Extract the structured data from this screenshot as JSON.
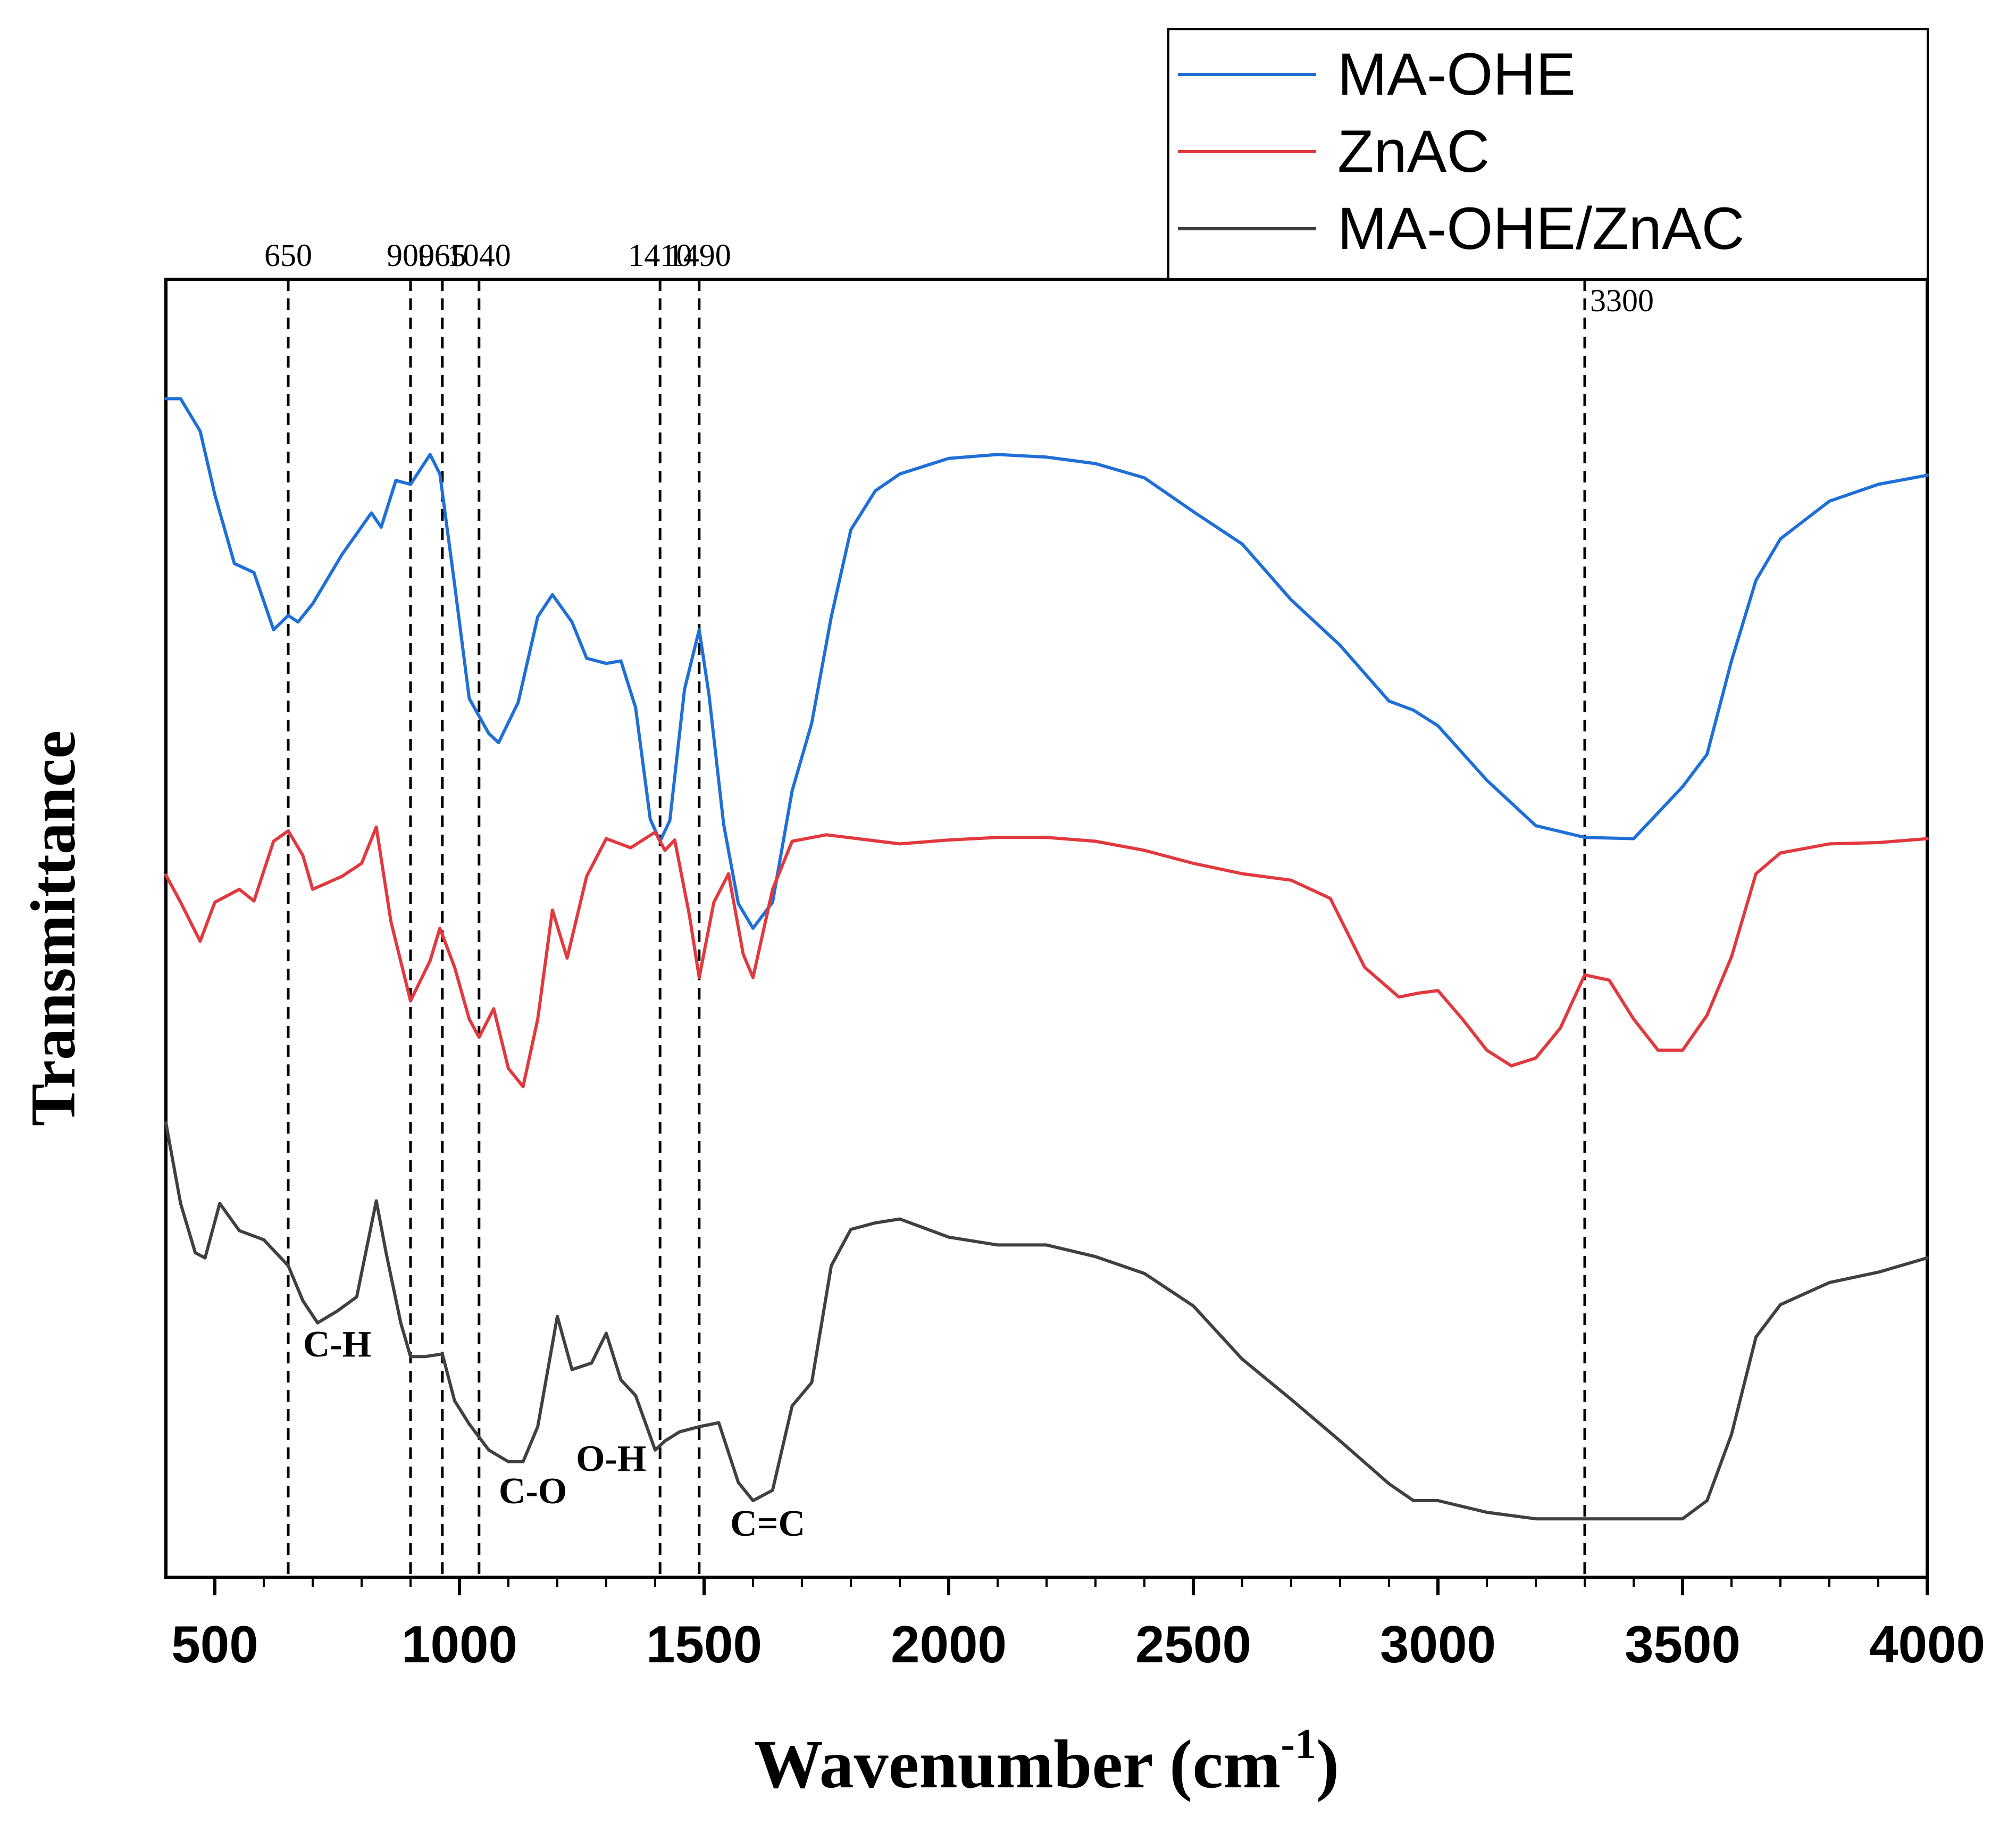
{
  "chart_data": {
    "type": "line",
    "title": "",
    "xlabel": "Wavenumber (cm",
    "xlabel_superscript": "-1",
    "xlabel_close": ")",
    "ylabel": "Transmittance",
    "xlim": [
      400,
      4000
    ],
    "ylim": [
      0,
      100
    ],
    "x_ticks": [
      500,
      1000,
      1500,
      2000,
      2500,
      3000,
      3500,
      4000
    ],
    "x_tick_labels": [
      "500",
      "1000",
      "1500",
      "2000",
      "2500",
      "3000",
      "3500",
      "4000"
    ],
    "legend_position": "top-right",
    "series": [
      {
        "name": "MA-OHE",
        "color": "#1f6fd6",
        "points": [
          [
            400,
            90.8
          ],
          [
            430,
            90.8
          ],
          [
            470,
            88.3
          ],
          [
            500,
            83.4
          ],
          [
            540,
            78.1
          ],
          [
            580,
            77.4
          ],
          [
            620,
            73.0
          ],
          [
            650,
            74.1
          ],
          [
            670,
            73.6
          ],
          [
            700,
            75.0
          ],
          [
            760,
            78.8
          ],
          [
            820,
            82.0
          ],
          [
            840,
            80.9
          ],
          [
            870,
            84.5
          ],
          [
            900,
            84.2
          ],
          [
            940,
            86.5
          ],
          [
            960,
            85.0
          ],
          [
            990,
            76.5
          ],
          [
            1020,
            67.7
          ],
          [
            1060,
            65.0
          ],
          [
            1080,
            64.3
          ],
          [
            1120,
            67.4
          ],
          [
            1160,
            74.0
          ],
          [
            1190,
            75.7
          ],
          [
            1230,
            73.6
          ],
          [
            1260,
            70.8
          ],
          [
            1300,
            70.4
          ],
          [
            1330,
            70.6
          ],
          [
            1360,
            67.0
          ],
          [
            1390,
            58.4
          ],
          [
            1410,
            56.7
          ],
          [
            1430,
            58.3
          ],
          [
            1460,
            68.4
          ],
          [
            1490,
            73.0
          ],
          [
            1510,
            68.0
          ],
          [
            1540,
            58.0
          ],
          [
            1570,
            51.9
          ],
          [
            1600,
            50.0
          ],
          [
            1640,
            52.0
          ],
          [
            1680,
            60.6
          ],
          [
            1720,
            65.8
          ],
          [
            1760,
            74.0
          ],
          [
            1800,
            80.7
          ],
          [
            1850,
            83.7
          ],
          [
            1900,
            85.0
          ],
          [
            2000,
            86.2
          ],
          [
            2100,
            86.5
          ],
          [
            2200,
            86.3
          ],
          [
            2300,
            85.8
          ],
          [
            2400,
            84.7
          ],
          [
            2500,
            82.1
          ],
          [
            2600,
            79.6
          ],
          [
            2700,
            75.3
          ],
          [
            2800,
            71.8
          ],
          [
            2900,
            67.5
          ],
          [
            2950,
            66.8
          ],
          [
            3000,
            65.6
          ],
          [
            3100,
            61.4
          ],
          [
            3200,
            57.9
          ],
          [
            3300,
            57.0
          ],
          [
            3400,
            56.9
          ],
          [
            3500,
            60.9
          ],
          [
            3550,
            63.4
          ],
          [
            3600,
            70.6
          ],
          [
            3650,
            76.8
          ],
          [
            3700,
            80.0
          ],
          [
            3800,
            82.9
          ],
          [
            3900,
            84.2
          ],
          [
            4000,
            84.9
          ]
        ]
      },
      {
        "name": "ZnAC",
        "color": "#e0393e",
        "points": [
          [
            400,
            54.1
          ],
          [
            430,
            52.0
          ],
          [
            470,
            49.0
          ],
          [
            500,
            52.0
          ],
          [
            550,
            53.0
          ],
          [
            580,
            52.1
          ],
          [
            620,
            56.7
          ],
          [
            650,
            57.5
          ],
          [
            680,
            55.6
          ],
          [
            700,
            53.0
          ],
          [
            760,
            54.0
          ],
          [
            800,
            55.0
          ],
          [
            830,
            57.8
          ],
          [
            860,
            50.5
          ],
          [
            900,
            44.4
          ],
          [
            940,
            47.5
          ],
          [
            960,
            50.0
          ],
          [
            990,
            47.0
          ],
          [
            1020,
            43.0
          ],
          [
            1040,
            41.6
          ],
          [
            1070,
            43.8
          ],
          [
            1100,
            39.2
          ],
          [
            1130,
            37.8
          ],
          [
            1160,
            43.0
          ],
          [
            1190,
            51.4
          ],
          [
            1220,
            47.7
          ],
          [
            1260,
            54.0
          ],
          [
            1300,
            56.9
          ],
          [
            1350,
            56.2
          ],
          [
            1400,
            57.4
          ],
          [
            1420,
            56.0
          ],
          [
            1440,
            56.8
          ],
          [
            1470,
            51.0
          ],
          [
            1490,
            46.2
          ],
          [
            1520,
            52.0
          ],
          [
            1550,
            54.2
          ],
          [
            1580,
            48.0
          ],
          [
            1600,
            46.2
          ],
          [
            1640,
            53.0
          ],
          [
            1680,
            56.7
          ],
          [
            1750,
            57.2
          ],
          [
            1900,
            56.5
          ],
          [
            2000,
            56.8
          ],
          [
            2100,
            57.0
          ],
          [
            2200,
            57.0
          ],
          [
            2300,
            56.7
          ],
          [
            2400,
            56.0
          ],
          [
            2500,
            55.0
          ],
          [
            2600,
            54.2
          ],
          [
            2700,
            53.7
          ],
          [
            2780,
            52.3
          ],
          [
            2850,
            47.0
          ],
          [
            2920,
            44.7
          ],
          [
            2960,
            45.0
          ],
          [
            3000,
            45.2
          ],
          [
            3050,
            43.0
          ],
          [
            3100,
            40.6
          ],
          [
            3150,
            39.4
          ],
          [
            3200,
            40.0
          ],
          [
            3250,
            42.3
          ],
          [
            3300,
            46.4
          ],
          [
            3350,
            46.0
          ],
          [
            3400,
            43.0
          ],
          [
            3450,
            40.6
          ],
          [
            3500,
            40.6
          ],
          [
            3550,
            43.3
          ],
          [
            3600,
            47.8
          ],
          [
            3650,
            54.2
          ],
          [
            3700,
            55.8
          ],
          [
            3800,
            56.5
          ],
          [
            3900,
            56.6
          ],
          [
            4000,
            56.9
          ]
        ]
      },
      {
        "name": "MA-OHE/ZnAC",
        "color": "#404040",
        "points": [
          [
            400,
            35.0
          ],
          [
            430,
            28.8
          ],
          [
            460,
            25.0
          ],
          [
            480,
            24.6
          ],
          [
            510,
            28.8
          ],
          [
            550,
            26.7
          ],
          [
            600,
            26.0
          ],
          [
            650,
            24.0
          ],
          [
            680,
            21.3
          ],
          [
            710,
            19.6
          ],
          [
            750,
            20.5
          ],
          [
            790,
            21.6
          ],
          [
            830,
            29.0
          ],
          [
            850,
            25.0
          ],
          [
            880,
            19.6
          ],
          [
            900,
            17.0
          ],
          [
            930,
            17.0
          ],
          [
            965,
            17.2
          ],
          [
            990,
            13.6
          ],
          [
            1020,
            11.8
          ],
          [
            1060,
            9.8
          ],
          [
            1100,
            8.9
          ],
          [
            1130,
            8.9
          ],
          [
            1160,
            11.6
          ],
          [
            1200,
            20.1
          ],
          [
            1230,
            16.0
          ],
          [
            1270,
            16.5
          ],
          [
            1300,
            18.8
          ],
          [
            1330,
            15.2
          ],
          [
            1360,
            14.0
          ],
          [
            1400,
            9.8
          ],
          [
            1420,
            10.5
          ],
          [
            1450,
            11.2
          ],
          [
            1490,
            11.6
          ],
          [
            1530,
            11.9
          ],
          [
            1570,
            7.3
          ],
          [
            1600,
            5.9
          ],
          [
            1640,
            6.7
          ],
          [
            1680,
            13.2
          ],
          [
            1720,
            15.0
          ],
          [
            1760,
            24.0
          ],
          [
            1800,
            26.8
          ],
          [
            1850,
            27.3
          ],
          [
            1900,
            27.6
          ],
          [
            2000,
            26.2
          ],
          [
            2100,
            25.6
          ],
          [
            2200,
            25.6
          ],
          [
            2300,
            24.7
          ],
          [
            2400,
            23.4
          ],
          [
            2500,
            20.9
          ],
          [
            2600,
            16.8
          ],
          [
            2700,
            13.7
          ],
          [
            2800,
            10.5
          ],
          [
            2900,
            7.2
          ],
          [
            2950,
            5.9
          ],
          [
            3000,
            5.9
          ],
          [
            3100,
            5.0
          ],
          [
            3200,
            4.5
          ],
          [
            3300,
            4.5
          ],
          [
            3400,
            4.5
          ],
          [
            3500,
            4.5
          ],
          [
            3550,
            5.9
          ],
          [
            3600,
            11.0
          ],
          [
            3650,
            18.5
          ],
          [
            3700,
            21.0
          ],
          [
            3800,
            22.7
          ],
          [
            3900,
            23.5
          ],
          [
            4000,
            24.6
          ]
        ]
      }
    ],
    "reference_lines": [
      {
        "x": 650,
        "label": "650"
      },
      {
        "x": 900,
        "label": "900"
      },
      {
        "x": 965,
        "label": "965"
      },
      {
        "x": 1040,
        "label": "1040"
      },
      {
        "x": 1410,
        "label": "1410"
      },
      {
        "x": 1490,
        "label": "1490"
      },
      {
        "x": 3300,
        "label": "3300"
      }
    ],
    "annotations": [
      {
        "text": "C-H",
        "x": 750,
        "y": 17.0
      },
      {
        "text": "C-O",
        "x": 1150,
        "y": 5.7
      },
      {
        "text": "O-H",
        "x": 1310,
        "y": 8.2
      },
      {
        "text": "C=C",
        "x": 1630,
        "y": 3.2
      }
    ]
  }
}
